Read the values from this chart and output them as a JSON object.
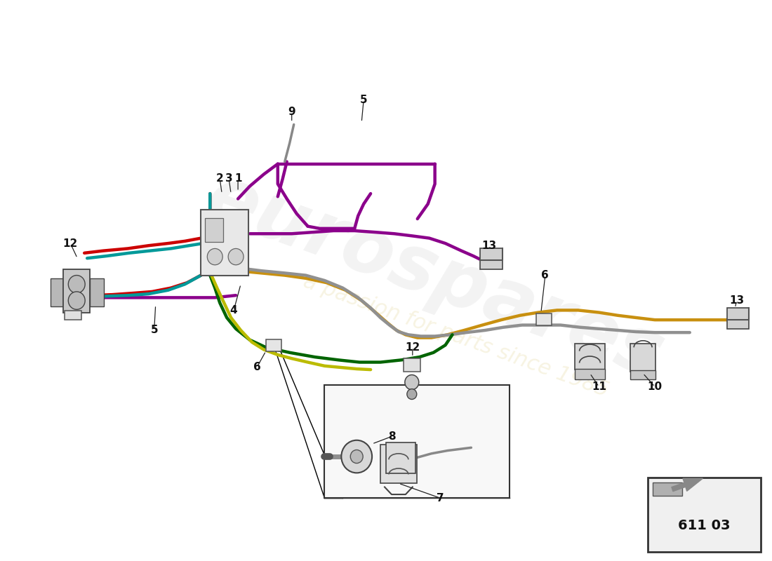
{
  "bg_color": "#ffffff",
  "part_number_text": "611 03",
  "fig_width": 11.0,
  "fig_height": 8.0,
  "fig_dpi": 100,
  "xlim": [
    0.0,
    11.0
  ],
  "ylim": [
    0.5,
    8.0
  ],
  "purple_top": {
    "color": "#8B008B",
    "lw": 3.2,
    "points": [
      [
        3.35,
        5.3
      ],
      [
        3.38,
        5.15
      ],
      [
        3.42,
        4.88
      ],
      [
        3.7,
        4.85
      ],
      [
        4.05,
        4.82
      ],
      [
        4.2,
        4.82
      ],
      [
        4.2,
        5.05
      ],
      [
        4.18,
        5.45
      ],
      [
        4.18,
        5.72
      ],
      [
        4.35,
        5.82
      ],
      [
        4.6,
        5.82
      ],
      [
        5.0,
        5.82
      ],
      [
        5.3,
        5.82
      ],
      [
        5.55,
        5.82
      ],
      [
        5.82,
        5.82
      ],
      [
        6.05,
        5.82
      ],
      [
        6.18,
        5.7
      ],
      [
        6.18,
        5.45
      ],
      [
        6.18,
        5.15
      ],
      [
        6.18,
        4.88
      ]
    ]
  },
  "purple_top2": {
    "color": "#8B008B",
    "lw": 3.2,
    "points": [
      [
        6.18,
        4.88
      ],
      [
        6.35,
        4.82
      ],
      [
        6.55,
        4.75
      ],
      [
        6.72,
        4.68
      ],
      [
        6.85,
        4.58
      ]
    ]
  },
  "purple_left_horiz": {
    "color": "#8B008B",
    "lw": 3.2,
    "points": [
      [
        1.05,
        4.02
      ],
      [
        1.35,
        4.02
      ],
      [
        1.7,
        4.02
      ],
      [
        2.05,
        4.02
      ],
      [
        2.4,
        4.02
      ],
      [
        2.75,
        4.02
      ],
      [
        3.05,
        4.02
      ],
      [
        3.35,
        4.05
      ]
    ]
  },
  "red_up": {
    "color": "#CC0000",
    "lw": 3.2,
    "points": [
      [
        1.18,
        4.62
      ],
      [
        1.45,
        4.65
      ],
      [
        1.8,
        4.68
      ],
      [
        2.1,
        4.72
      ],
      [
        2.38,
        4.75
      ],
      [
        2.62,
        4.78
      ],
      [
        2.85,
        4.82
      ],
      [
        2.95,
        4.92
      ],
      [
        2.98,
        5.08
      ],
      [
        2.98,
        5.25
      ],
      [
        2.98,
        5.42
      ]
    ]
  },
  "red_down": {
    "color": "#CC0000",
    "lw": 3.2,
    "points": [
      [
        2.85,
        4.32
      ],
      [
        2.65,
        4.22
      ],
      [
        2.42,
        4.15
      ],
      [
        2.15,
        4.1
      ],
      [
        1.88,
        4.08
      ],
      [
        1.58,
        4.06
      ],
      [
        1.32,
        4.05
      ],
      [
        1.1,
        4.03
      ]
    ]
  },
  "cyan_up": {
    "color": "#009999",
    "lw": 3.2,
    "points": [
      [
        1.22,
        4.55
      ],
      [
        1.5,
        4.58
      ],
      [
        1.82,
        4.62
      ],
      [
        2.12,
        4.65
      ],
      [
        2.42,
        4.68
      ],
      [
        2.68,
        4.72
      ],
      [
        2.88,
        4.75
      ],
      [
        2.98,
        4.88
      ],
      [
        2.98,
        5.02
      ],
      [
        2.98,
        5.22
      ],
      [
        2.98,
        5.42
      ]
    ]
  },
  "cyan_down": {
    "color": "#009999",
    "lw": 3.2,
    "points": [
      [
        2.85,
        4.32
      ],
      [
        2.62,
        4.2
      ],
      [
        2.38,
        4.12
      ],
      [
        2.1,
        4.07
      ],
      [
        1.82,
        4.05
      ],
      [
        1.52,
        4.04
      ],
      [
        1.25,
        4.03
      ],
      [
        1.08,
        4.03
      ]
    ]
  },
  "green_pipe": {
    "color": "#006400",
    "lw": 3.2,
    "points": [
      [
        2.98,
        4.32
      ],
      [
        3.05,
        4.15
      ],
      [
        3.12,
        3.95
      ],
      [
        3.22,
        3.75
      ],
      [
        3.35,
        3.6
      ],
      [
        3.55,
        3.45
      ],
      [
        3.78,
        3.35
      ],
      [
        4.12,
        3.28
      ],
      [
        4.48,
        3.22
      ],
      [
        4.82,
        3.18
      ],
      [
        5.12,
        3.15
      ],
      [
        5.42,
        3.15
      ],
      [
        5.72,
        3.18
      ],
      [
        5.98,
        3.22
      ],
      [
        6.18,
        3.28
      ],
      [
        6.35,
        3.38
      ],
      [
        6.45,
        3.52
      ]
    ]
  },
  "yellow_pipe": {
    "color": "#BBBB00",
    "lw": 3.2,
    "points": [
      [
        3.0,
        4.32
      ],
      [
        3.08,
        4.15
      ],
      [
        3.18,
        3.95
      ],
      [
        3.28,
        3.75
      ],
      [
        3.42,
        3.58
      ],
      [
        3.58,
        3.42
      ],
      [
        3.75,
        3.32
      ],
      [
        3.95,
        3.25
      ],
      [
        4.15,
        3.2
      ],
      [
        4.38,
        3.15
      ],
      [
        4.62,
        3.1
      ],
      [
        4.85,
        3.08
      ],
      [
        5.08,
        3.06
      ],
      [
        5.28,
        3.05
      ]
    ]
  },
  "gold_pipe": {
    "color": "#C89010",
    "lw": 3.2,
    "points": [
      [
        3.0,
        4.38
      ],
      [
        3.38,
        4.38
      ],
      [
        3.72,
        4.35
      ],
      [
        4.05,
        4.32
      ],
      [
        4.35,
        4.28
      ],
      [
        4.65,
        4.22
      ],
      [
        4.92,
        4.12
      ],
      [
        5.15,
        3.98
      ],
      [
        5.35,
        3.82
      ],
      [
        5.52,
        3.68
      ],
      [
        5.65,
        3.58
      ],
      [
        5.78,
        3.52
      ],
      [
        5.95,
        3.48
      ],
      [
        6.15,
        3.48
      ],
      [
        6.38,
        3.52
      ],
      [
        6.62,
        3.58
      ],
      [
        6.88,
        3.65
      ],
      [
        7.15,
        3.72
      ],
      [
        7.42,
        3.78
      ],
      [
        7.68,
        3.82
      ],
      [
        7.95,
        3.85
      ],
      [
        8.25,
        3.85
      ],
      [
        8.55,
        3.82
      ],
      [
        8.82,
        3.78
      ],
      [
        9.08,
        3.75
      ],
      [
        9.35,
        3.72
      ],
      [
        9.62,
        3.72
      ],
      [
        9.88,
        3.72
      ],
      [
        10.15,
        3.72
      ],
      [
        10.38,
        3.72
      ]
    ]
  },
  "grey_pipe": {
    "color": "#909090",
    "lw": 3.2,
    "points": [
      [
        3.0,
        4.42
      ],
      [
        3.38,
        4.42
      ],
      [
        3.72,
        4.38
      ],
      [
        4.05,
        4.35
      ],
      [
        4.35,
        4.32
      ],
      [
        4.62,
        4.25
      ],
      [
        4.88,
        4.15
      ],
      [
        5.1,
        4.02
      ],
      [
        5.28,
        3.88
      ],
      [
        5.42,
        3.75
      ],
      [
        5.55,
        3.65
      ],
      [
        5.68,
        3.56
      ],
      [
        5.82,
        3.52
      ],
      [
        6.0,
        3.5
      ],
      [
        6.2,
        3.5
      ],
      [
        6.42,
        3.52
      ],
      [
        6.65,
        3.55
      ],
      [
        6.92,
        3.58
      ],
      [
        7.18,
        3.62
      ],
      [
        7.45,
        3.65
      ],
      [
        7.72,
        3.65
      ],
      [
        8.0,
        3.65
      ],
      [
        8.28,
        3.62
      ],
      [
        8.55,
        3.6
      ],
      [
        8.82,
        3.58
      ],
      [
        9.08,
        3.56
      ],
      [
        9.35,
        3.55
      ],
      [
        9.62,
        3.55
      ],
      [
        9.85,
        3.55
      ]
    ]
  }
}
